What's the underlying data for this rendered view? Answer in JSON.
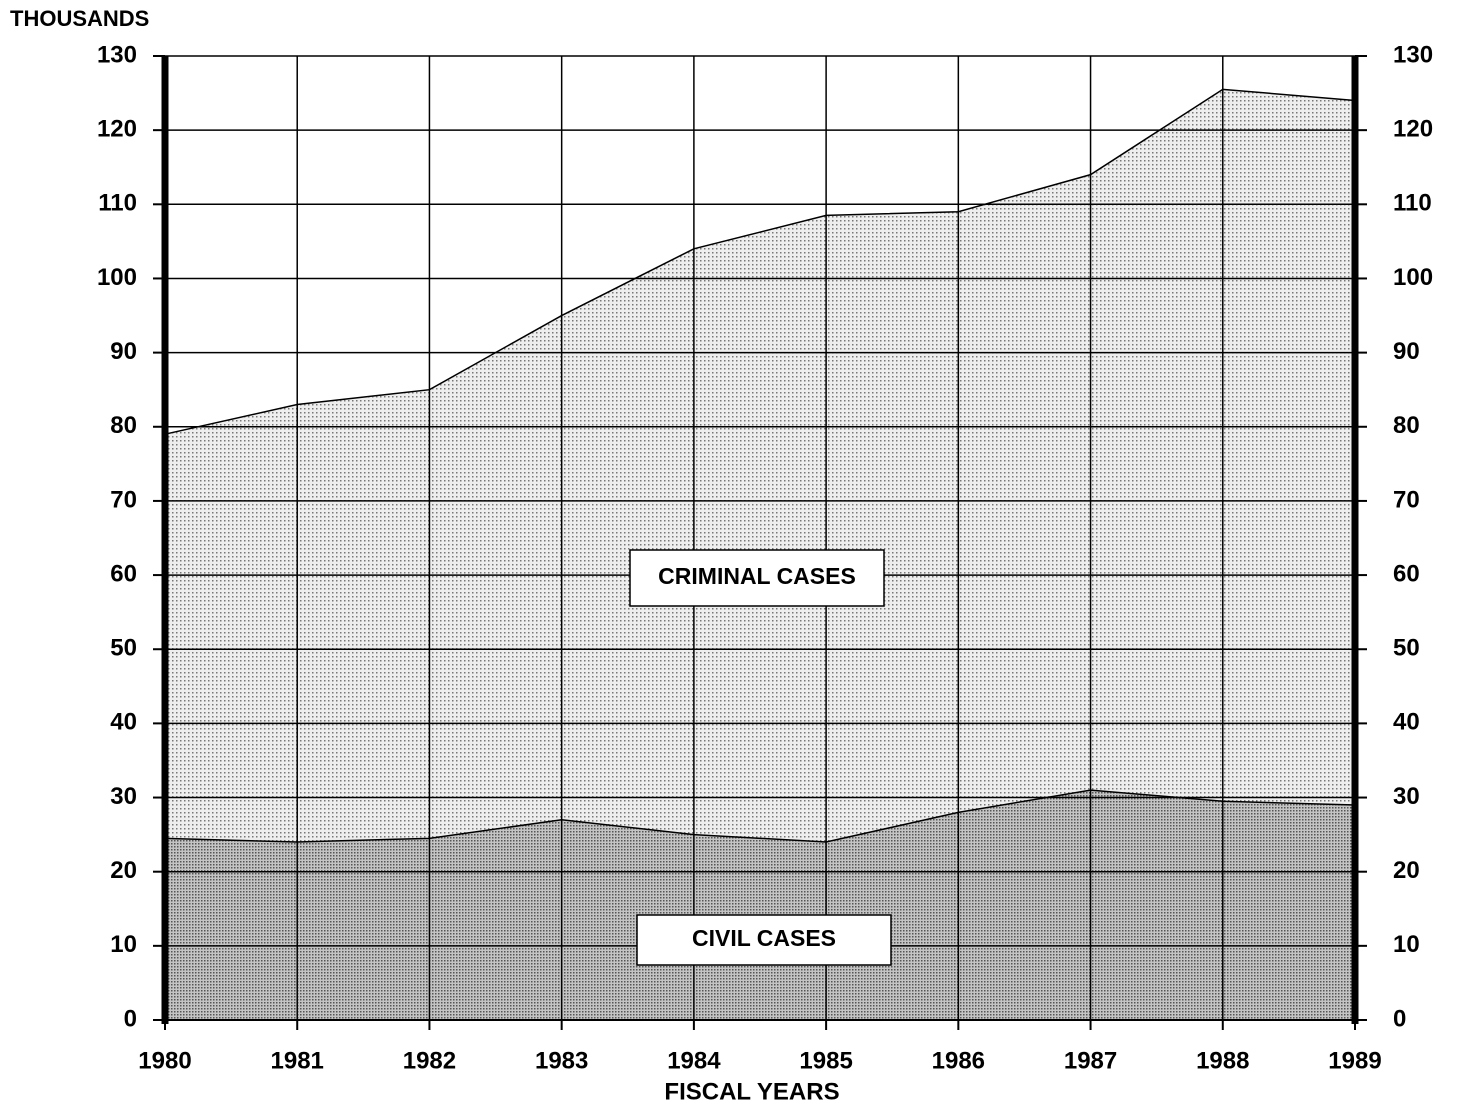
{
  "chart_data": {
    "type": "stacked_area",
    "y_axis_label": "THOUSANDS",
    "x_axis_label": "FISCAL YEARS",
    "x": [
      1980,
      1981,
      1982,
      1983,
      1984,
      1985,
      1986,
      1987,
      1988,
      1989
    ],
    "xlim": [
      1980,
      1989
    ],
    "xticks": [
      1980,
      1981,
      1982,
      1983,
      1984,
      1985,
      1986,
      1987,
      1988,
      1989
    ],
    "ylim": [
      0,
      130
    ],
    "yticks": [
      0,
      10,
      20,
      30,
      40,
      50,
      60,
      70,
      80,
      90,
      100,
      110,
      120,
      130
    ],
    "grid": true,
    "series": [
      {
        "name": "CRIMINAL CASES",
        "color": "#a8a8a8",
        "values": [
          24.5,
          24,
          24.5,
          27,
          25,
          24,
          28,
          31,
          29.5,
          29
        ]
      },
      {
        "name": "CIVIL CASES",
        "color": "#d8d8d8",
        "values": [
          54.5,
          59,
          60.5,
          68,
          79,
          84.5,
          81,
          83,
          96,
          95
        ]
      }
    ]
  }
}
